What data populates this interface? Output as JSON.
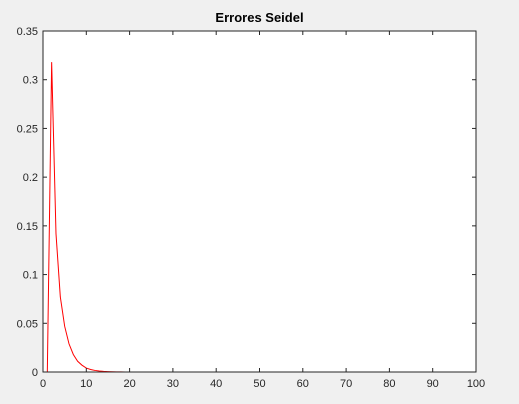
{
  "chart_data": {
    "type": "line",
    "title": "Errores Seidel",
    "xlabel": "",
    "ylabel": "",
    "xlim": [
      0,
      100
    ],
    "ylim": [
      0,
      0.35
    ],
    "xticks": [
      0,
      10,
      20,
      30,
      40,
      50,
      60,
      70,
      80,
      90,
      100
    ],
    "yticks": [
      0,
      0.05,
      0.1,
      0.15,
      0.2,
      0.25,
      0.3,
      0.35
    ],
    "xtick_labels": [
      "0",
      "10",
      "20",
      "30",
      "40",
      "50",
      "60",
      "70",
      "80",
      "90",
      "100"
    ],
    "ytick_labels": [
      "0",
      "0.05",
      "0.1",
      "0.15",
      "0.2",
      "0.25",
      "0.3",
      "0.35"
    ],
    "grid": false,
    "series": [
      {
        "color": "#ff0000",
        "x": [
          1,
          2,
          3,
          4,
          5,
          6,
          7,
          8,
          9,
          10,
          11,
          12,
          13,
          14,
          15,
          16,
          17,
          18,
          19,
          20,
          25,
          30,
          40,
          50,
          60,
          70,
          80,
          90,
          100
        ],
        "y": [
          0,
          0.318,
          0.142,
          0.077,
          0.047,
          0.029,
          0.018,
          0.011,
          0.007,
          0.004,
          0.0026,
          0.0016,
          0.001,
          0.0006,
          0.0004,
          0.00025,
          0.00015,
          0.0001,
          6e-05,
          4e-05,
          5e-06,
          5e-07,
          0,
          0,
          0,
          0,
          0,
          0,
          0
        ]
      }
    ]
  }
}
